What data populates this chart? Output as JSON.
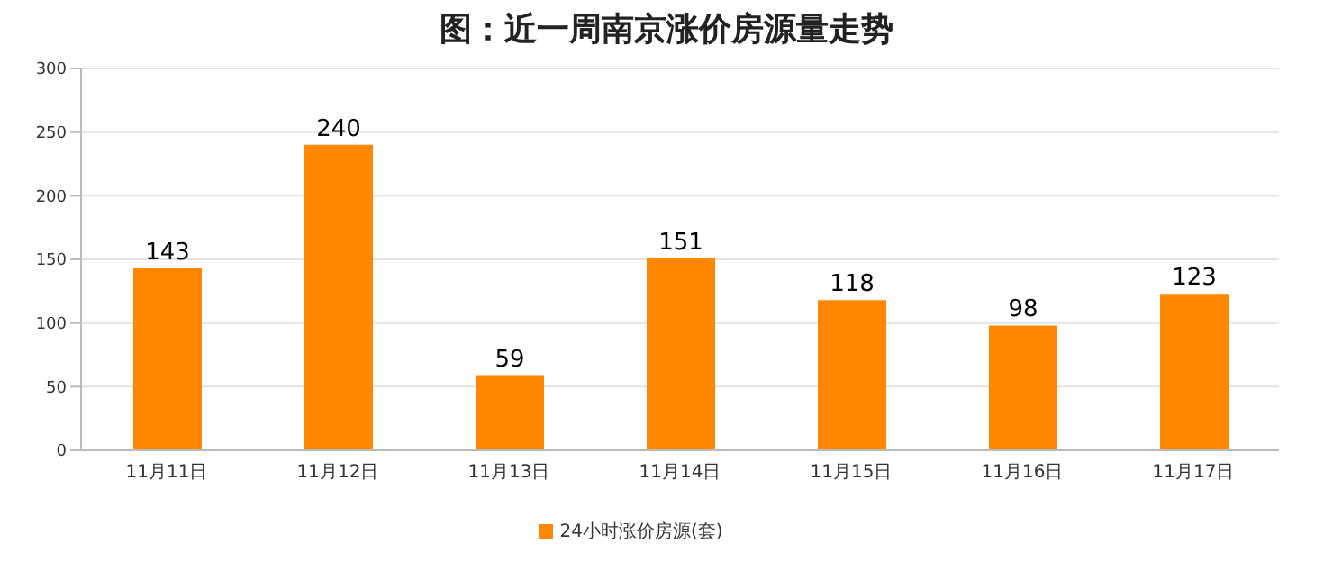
{
  "chart_data": {
    "type": "bar",
    "title": "图：近一周南京涨价房源量走势",
    "categories": [
      "11月11日",
      "11月12日",
      "11月13日",
      "11月14日",
      "11月15日",
      "11月16日",
      "11月17日"
    ],
    "series": [
      {
        "name": "24小时涨价房源(套)",
        "color": "#ff8800",
        "values": [
          143,
          240,
          59,
          151,
          118,
          98,
          123
        ]
      }
    ],
    "ylim": [
      0,
      300
    ],
    "yticks": [
      0,
      50,
      100,
      150,
      200,
      250,
      300
    ],
    "grid": "y",
    "legend": "bottom",
    "data_labels": true
  }
}
